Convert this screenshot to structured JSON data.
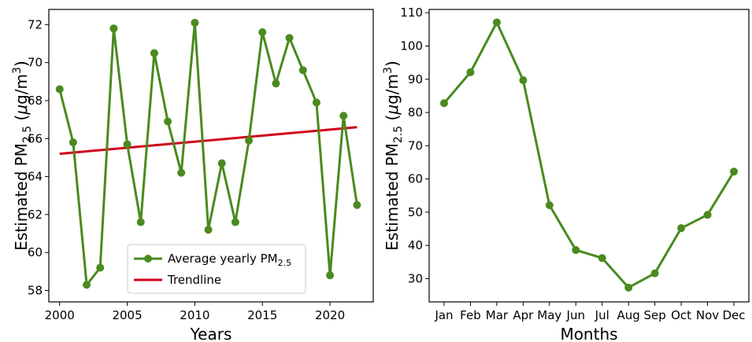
{
  "chart_data": [
    {
      "type": "line",
      "xlabel": "Years",
      "ylabel_prefix": "Estimated PM",
      "ylabel_sub": "2.5",
      "ylabel_units_open": " (",
      "ylabel_mu": "μ",
      "ylabel_units_mid": "g/m",
      "ylabel_units_sup": "3",
      "ylabel_units_close": ")",
      "xlim": [
        1999.2,
        2023.2
      ],
      "ylim": [
        57.4,
        72.8
      ],
      "xticks": [
        2000,
        2005,
        2010,
        2015,
        2020
      ],
      "yticks": [
        58,
        60,
        62,
        64,
        66,
        68,
        70,
        72
      ],
      "grid": false,
      "legend_position": "bottom-center",
      "series": [
        {
          "name": "Average yearly PM",
          "name_sub": "2.5",
          "color": "#4a8a1f",
          "marker": "circle",
          "x": [
            2000,
            2001,
            2002,
            2003,
            2004,
            2005,
            2006,
            2007,
            2008,
            2009,
            2010,
            2011,
            2012,
            2013,
            2014,
            2015,
            2016,
            2017,
            2018,
            2019,
            2020,
            2021,
            2022
          ],
          "y": [
            68.6,
            65.8,
            58.3,
            59.2,
            71.8,
            65.7,
            61.6,
            70.5,
            66.9,
            64.2,
            72.1,
            61.2,
            64.7,
            61.6,
            65.9,
            71.6,
            68.9,
            71.3,
            69.6,
            67.9,
            58.8,
            67.2,
            62.5
          ]
        },
        {
          "name": "Trendline",
          "color": "#d0021b",
          "marker": "none",
          "x": [
            2000,
            2022
          ],
          "y": [
            65.2,
            66.6
          ]
        }
      ]
    },
    {
      "type": "line",
      "xlabel": "Months",
      "ylabel_prefix": "Estimated PM",
      "ylabel_sub": "2.5",
      "ylabel_units_open": " (",
      "ylabel_mu": "μ",
      "ylabel_units_mid": "g/m",
      "ylabel_units_sup": "3",
      "ylabel_units_close": ")",
      "ylim": [
        23,
        111
      ],
      "yticks": [
        30,
        40,
        50,
        60,
        70,
        80,
        90,
        100,
        110
      ],
      "categories": [
        "Jan",
        "Feb",
        "Mar",
        "Apr",
        "May",
        "Jun",
        "Jul",
        "Aug",
        "Sep",
        "Oct",
        "Nov",
        "Dec"
      ],
      "grid": false,
      "series": [
        {
          "color": "#4a8a1f",
          "marker": "circle",
          "values": [
            82.8,
            92.1,
            107.1,
            89.7,
            52.1,
            38.6,
            36.2,
            27.3,
            31.6,
            45.2,
            49.2,
            62.2
          ]
        }
      ]
    }
  ]
}
